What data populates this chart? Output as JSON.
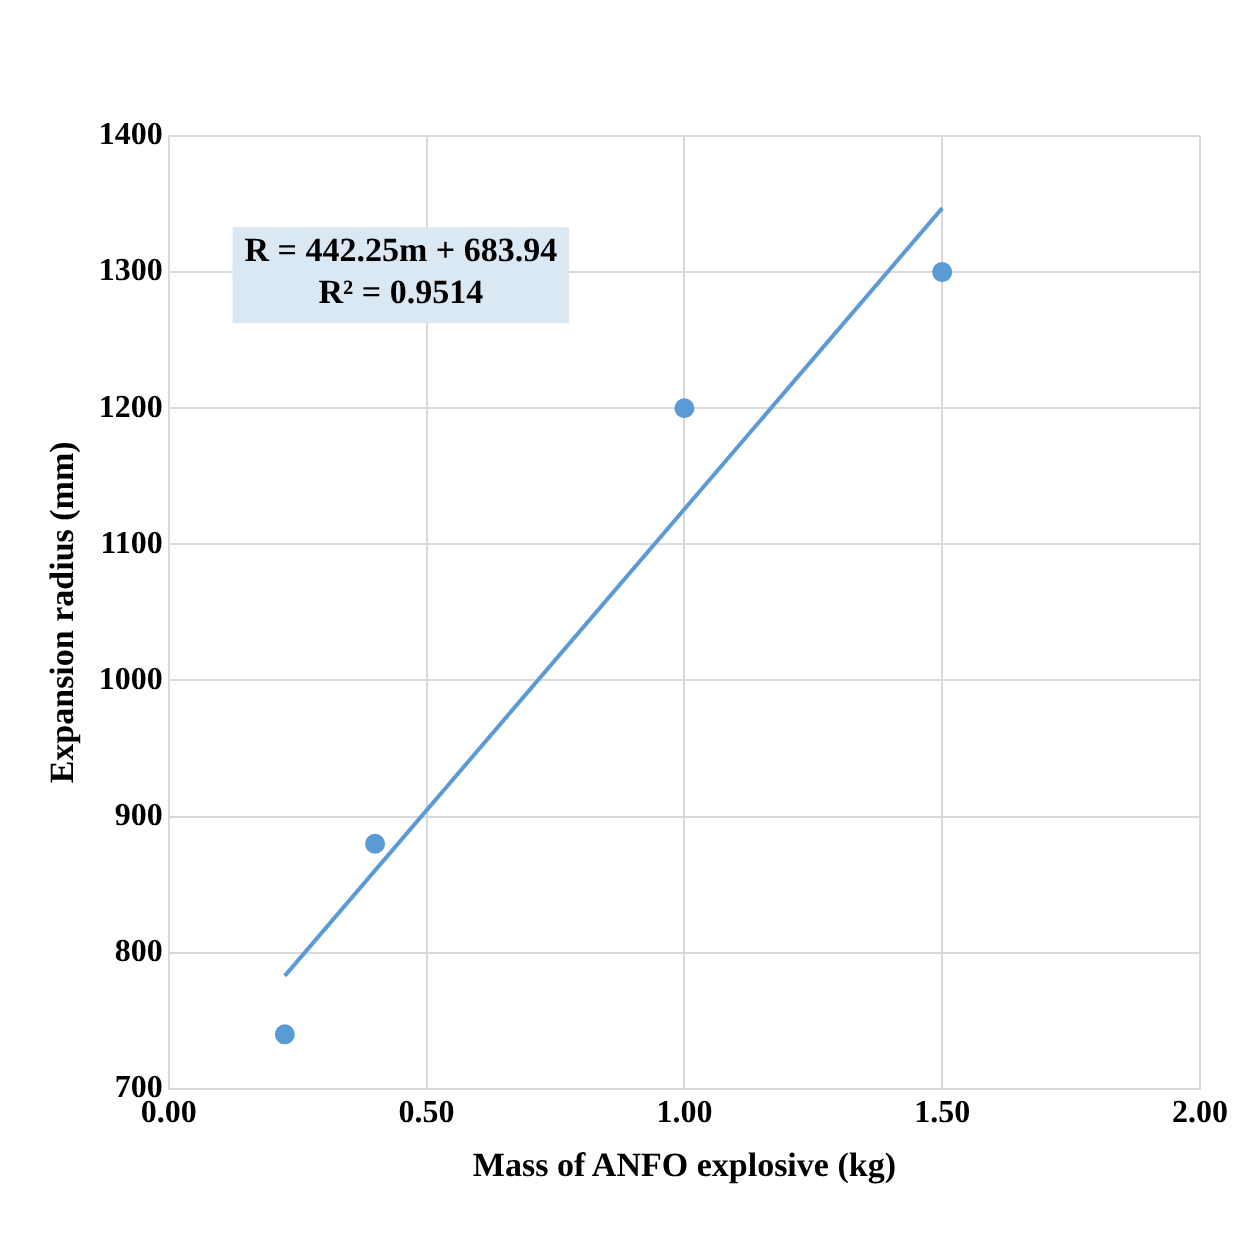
{
  "chart_data": {
    "type": "scatter",
    "xlabel": "Mass of ANFO explosive (kg)",
    "ylabel": "Expansion radius (mm)",
    "xlim": [
      0,
      2
    ],
    "xticks": [
      {
        "value": 0,
        "label": "0.00"
      },
      {
        "value": 0.5,
        "label": "0.50"
      },
      {
        "value": 1,
        "label": "1.00"
      },
      {
        "value": 1.5,
        "label": "1.50"
      },
      {
        "value": 2,
        "label": "2.00"
      }
    ],
    "ylim": [
      700,
      1400
    ],
    "yticks": [
      700,
      800,
      900,
      1000,
      1100,
      1200,
      1300,
      1400
    ],
    "grid": true,
    "marker": "circle",
    "series": [
      {
        "type": "scatter",
        "color": "#5b9bd5",
        "x": [
          0.225,
          0.4,
          1.0,
          1.5
        ],
        "values": [
          740,
          880,
          1200,
          1300
        ]
      },
      {
        "type": "line",
        "color": "#5b9bd5",
        "marker": "none",
        "x": [
          0.225,
          1.5
        ],
        "values": [
          783,
          1347
        ]
      }
    ],
    "annotations": [
      "R = 442.25m + 683.94",
      "R² = 0.9514"
    ]
  }
}
